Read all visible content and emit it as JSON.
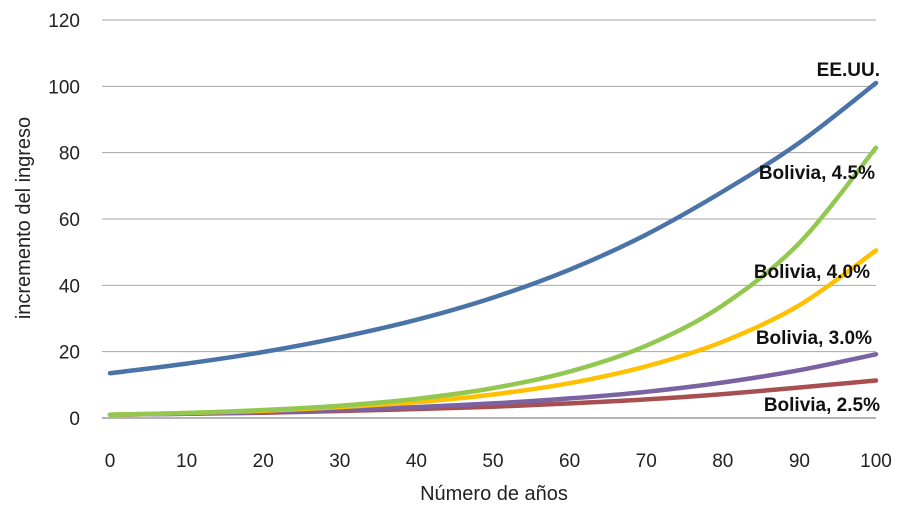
{
  "chart_data": {
    "type": "line",
    "title": "",
    "xlabel": "Número de años",
    "ylabel": "incremento del ingreso",
    "xlim": [
      0,
      100
    ],
    "ylim": [
      0,
      120
    ],
    "xticks": [
      0,
      10,
      20,
      30,
      40,
      50,
      60,
      70,
      80,
      90,
      100
    ],
    "yticks": [
      0,
      20,
      40,
      60,
      80,
      100,
      120
    ],
    "grid": "horizontal",
    "legend": "none",
    "x": [
      0,
      10,
      20,
      30,
      40,
      50,
      60,
      70,
      80,
      90,
      100
    ],
    "series": [
      {
        "name": "EE.UU.",
        "color": "#4a73a8",
        "values": [
          13.5,
          16.4,
          19.9,
          24.3,
          29.6,
          36.3,
          44.7,
          55.3,
          68.3,
          83.0,
          101.0
        ]
      },
      {
        "name": "Bolivia, 4.5%",
        "color": "#92c850",
        "values": [
          1.0,
          1.5,
          2.4,
          3.7,
          5.8,
          9.0,
          14.0,
          21.8,
          34.0,
          52.8,
          81.5
        ]
      },
      {
        "name": "Bolivia, 4.0%",
        "color": "#ffc000",
        "values": [
          1.0,
          1.5,
          2.2,
          3.3,
          4.8,
          7.1,
          10.5,
          15.6,
          23.0,
          34.0,
          50.5
        ]
      },
      {
        "name": "Bolivia, 3.0%",
        "color": "#7b62a3",
        "values": [
          1.0,
          1.3,
          1.8,
          2.4,
          3.3,
          4.4,
          5.9,
          7.9,
          10.7,
          14.4,
          19.2
        ]
      },
      {
        "name": "Bolivia, 2.5%",
        "color": "#a84f52",
        "values": [
          1.0,
          1.3,
          1.6,
          2.1,
          2.7,
          3.4,
          4.4,
          5.6,
          7.2,
          9.2,
          11.3
        ]
      }
    ],
    "labels": [
      "EE.UU.",
      "Bolivia, 4.5%",
      "Bolivia, 4.0%",
      "Bolivia, 3.0%",
      "Bolivia, 2.5%"
    ]
  }
}
